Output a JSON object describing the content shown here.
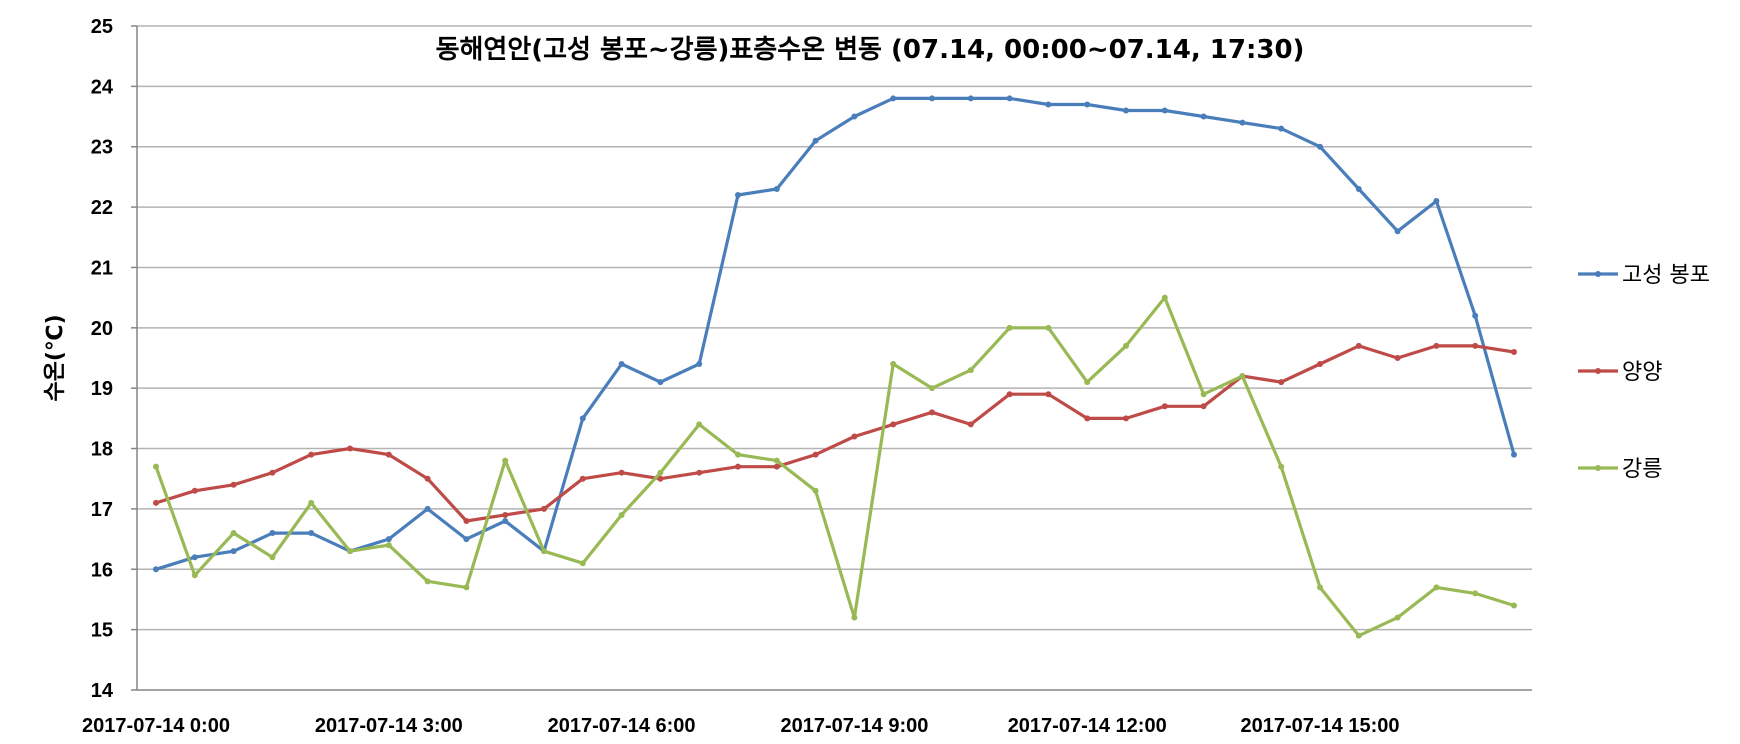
{
  "chart_data": {
    "type": "line",
    "title": "동해연안(고성 봉포~강릉)표층수온 변동 (07.14, 00:00~07.14, 17:30)",
    "ylabel": "수온(℃)",
    "xlabel": "",
    "ylim": [
      14,
      25
    ],
    "yticks": [
      "14",
      "15",
      "16",
      "17",
      "18",
      "19",
      "20",
      "21",
      "22",
      "23",
      "24",
      "25"
    ],
    "xtick_labels": [
      "2017-07-14 0:00",
      "2017-07-14 3:00",
      "2017-07-14 6:00",
      "2017-07-14 9:00",
      "2017-07-14 12:00",
      "2017-07-14 15:00"
    ],
    "x_interval_hours": 0.5,
    "grid": true,
    "legend_position": "right",
    "series": [
      {
        "name": "고성 봉포",
        "color": "#4a7ebb",
        "values": [
          16.0,
          16.2,
          16.3,
          16.6,
          16.6,
          16.3,
          16.5,
          17.0,
          16.5,
          16.8,
          16.3,
          18.5,
          19.4,
          19.1,
          19.4,
          22.2,
          22.3,
          23.1,
          23.5,
          23.8,
          23.8,
          23.8,
          23.8,
          23.7,
          23.7,
          23.6,
          23.6,
          23.5,
          23.4,
          23.3,
          23.0,
          22.3,
          21.6,
          22.1,
          20.2,
          17.9
        ]
      },
      {
        "name": "양양",
        "color": "#be4b48",
        "values": [
          17.1,
          17.3,
          17.4,
          17.6,
          17.9,
          18.0,
          17.9,
          17.5,
          16.8,
          16.9,
          17.0,
          17.5,
          17.6,
          17.5,
          17.6,
          17.7,
          17.7,
          17.9,
          18.2,
          18.4,
          18.6,
          18.4,
          18.9,
          18.9,
          18.5,
          18.5,
          18.7,
          18.7,
          19.2,
          19.1,
          19.4,
          19.7,
          19.5,
          19.7,
          19.7,
          19.6
        ]
      },
      {
        "name": "강릉",
        "color": "#98b954",
        "values": [
          17.7,
          15.9,
          16.6,
          16.2,
          17.1,
          16.3,
          16.4,
          15.8,
          15.7,
          17.8,
          16.3,
          16.1,
          16.9,
          17.6,
          18.4,
          17.9,
          17.8,
          17.3,
          15.2,
          19.4,
          19.0,
          19.3,
          20.0,
          20.0,
          19.1,
          19.7,
          20.5,
          18.9,
          19.2,
          17.7,
          15.7,
          14.9,
          15.2,
          15.7,
          15.6,
          15.4
        ]
      }
    ]
  }
}
